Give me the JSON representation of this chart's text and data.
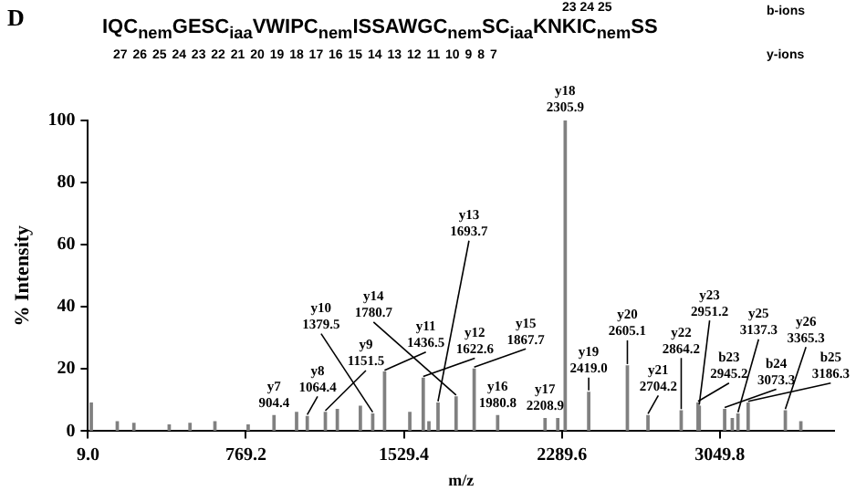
{
  "chart_data": {
    "type": "bar",
    "title": "D",
    "xlabel": "m/z",
    "ylabel": "% Intensity",
    "annotations": [
      "IQC$_{nem}$GESC$_{iaa}$VWIPC$_{nem}$ISSAWGC$_{nem}$SC$_{iaa}$KNKIC$_{nem}$SS",
      "23 24 25",
      "b-ions",
      "27 26 25 24 23 22 21 20 19 18 17 16 15 14 13 12 11 10 9 8 7",
      "y-ions",
      {
        "text": "y7 904.4",
        "x": 904.4,
        "y": 5
      },
      {
        "text": "y8 1064.4",
        "x": 1064.4,
        "y": 4.7
      },
      {
        "text": "y9 1151.5",
        "x": 1151.5,
        "y": 6
      },
      {
        "text": "y10 1379.5",
        "x": 1379.5,
        "y": 5.5
      },
      {
        "text": "y11 1436.5",
        "x": 1436.5,
        "y": 19
      },
      {
        "text": "y12 1622.6",
        "x": 1622.6,
        "y": 17
      },
      {
        "text": "y13 1693.7",
        "x": 1693.7,
        "y": 9
      },
      {
        "text": "y14 1780.7",
        "x": 1780.7,
        "y": 11
      },
      {
        "text": "y15 1867.7",
        "x": 1867.7,
        "y": 20
      },
      {
        "text": "y16 1980.8",
        "x": 1980.8,
        "y": 5
      },
      {
        "text": "y17 2208.9",
        "x": 2208.9,
        "y": 4
      },
      {
        "text": "y18 2305.9",
        "x": 2305.9,
        "y": 100
      },
      {
        "text": "y19 2419.0",
        "x": 2419.0,
        "y": 12.5
      },
      {
        "text": "y20 2605.1",
        "x": 2605.1,
        "y": 21
      },
      {
        "text": "y21 2704.2",
        "x": 2704.2,
        "y": 5
      },
      {
        "text": "y22 2864.2",
        "x": 2864.2,
        "y": 6.5
      },
      {
        "text": "b23 2945.2",
        "x": 2945.2,
        "y": 9
      },
      {
        "text": "y23 2951.2",
        "x": 2951.2,
        "y": 8
      },
      {
        "text": "b24 3073.3",
        "x": 3073.3,
        "y": 7
      },
      {
        "text": "y25 3137.3",
        "x": 3137.3,
        "y": 5.5
      },
      {
        "text": "b25 3186.3",
        "x": 3186.3,
        "y": 9
      },
      {
        "text": "y26 3365.3",
        "x": 3365.3,
        "y": 6.5
      }
    ],
    "x": [
      25,
      150,
      230,
      400,
      500,
      620,
      780,
      904.4,
      1013,
      1064.4,
      1151.5,
      1209,
      1320,
      1379.5,
      1436.5,
      1558,
      1622.6,
      1650,
      1693.7,
      1780.7,
      1867.7,
      1980.8,
      2208.9,
      2270,
      2305.9,
      2419.0,
      2605.1,
      2704.2,
      2864.2,
      2945.2,
      2951.2,
      3073.3,
      3110,
      3137.3,
      3186.3,
      3365.3,
      3440
    ],
    "values": [
      9,
      3,
      2.5,
      2,
      2.5,
      3,
      2,
      5,
      6,
      4.7,
      6,
      7,
      8,
      5.5,
      19,
      6,
      17,
      3,
      9,
      11,
      20,
      5,
      4,
      4,
      100,
      12.5,
      21,
      5,
      6.5,
      9,
      8,
      7,
      4,
      5.5,
      9,
      6.5,
      3
    ],
    "color": "#808080",
    "xlim": [
      9,
      3600
    ],
    "xticks": [
      {
        "value": 9,
        "label": "9.0"
      },
      769.2,
      1529.4,
      2289.6,
      3049.8
    ],
    "ylim": [
      0,
      100
    ],
    "yticks": [
      0,
      20,
      40,
      60,
      80,
      100
    ],
    "grid": false,
    "legend": false
  }
}
